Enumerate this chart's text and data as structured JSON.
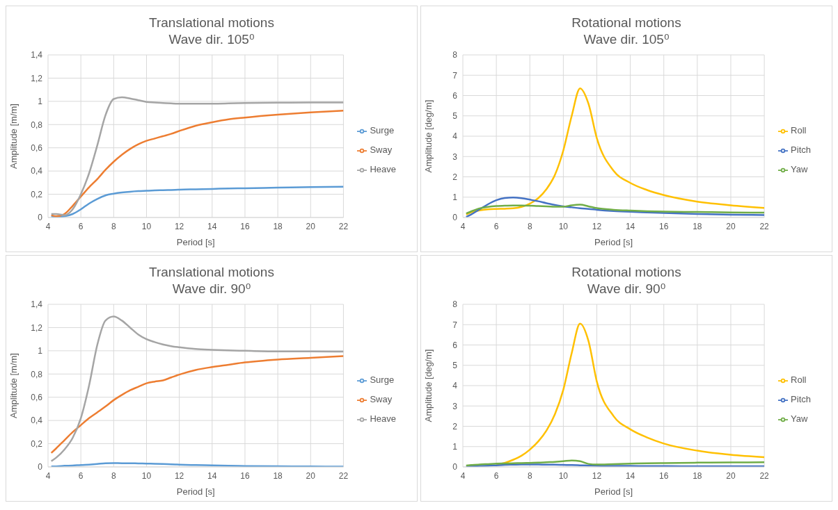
{
  "chart_data": [
    {
      "type": "line",
      "title": "Translational motions",
      "subtitle": "Wave dir. 105⁰",
      "xlabel": "Period [s]",
      "ylabel": "Amplitude [m/m]",
      "xlim": [
        4,
        22
      ],
      "xticks": [
        4,
        6,
        8,
        10,
        12,
        14,
        16,
        18,
        20,
        22
      ],
      "ylim": [
        0,
        1.4
      ],
      "yticks": [
        0,
        {
          "value": 0.2,
          "label": "0,2"
        },
        {
          "value": 0.4,
          "label": "0,4"
        },
        {
          "value": 0.6,
          "label": "0,6"
        },
        {
          "value": 0.8,
          "label": "0,8"
        },
        1,
        {
          "value": 1.2,
          "label": "1,2"
        },
        {
          "value": 1.4,
          "label": "1,4"
        }
      ],
      "grid": true,
      "legend": "right",
      "marker": "none",
      "line_style": "solid",
      "x": [
        4.2,
        4.5,
        5,
        5.5,
        6,
        6.5,
        7,
        7.5,
        8,
        8.5,
        9,
        9.5,
        10,
        10.5,
        11,
        11.5,
        12,
        13,
        14,
        15,
        16,
        18,
        20,
        22
      ],
      "series": [
        {
          "name": "Surge",
          "color": "#5b9bd5",
          "values": [
            0.01,
            0.005,
            0.01,
            0.03,
            0.07,
            0.12,
            0.16,
            0.19,
            0.205,
            0.215,
            0.222,
            0.227,
            0.23,
            0.233,
            0.235,
            0.237,
            0.24,
            0.243,
            0.246,
            0.25,
            0.252,
            0.257,
            0.262,
            0.265
          ]
        },
        {
          "name": "Sway",
          "color": "#ed7d31",
          "values": [
            0.02,
            0.01,
            0.03,
            0.1,
            0.18,
            0.26,
            0.33,
            0.41,
            0.48,
            0.54,
            0.59,
            0.63,
            0.66,
            0.68,
            0.7,
            0.72,
            0.745,
            0.79,
            0.82,
            0.845,
            0.86,
            0.885,
            0.905,
            0.92
          ]
        },
        {
          "name": "Heave",
          "color": "#a5a5a5",
          "values": [
            0.03,
            0.03,
            0.02,
            0.07,
            0.2,
            0.38,
            0.62,
            0.88,
            1.02,
            1.035,
            1.025,
            1.01,
            0.995,
            0.99,
            0.985,
            0.982,
            0.98,
            0.98,
            0.98,
            0.982,
            0.985,
            0.988,
            0.99,
            0.99
          ]
        }
      ]
    },
    {
      "type": "line",
      "title": "Rotational motions",
      "subtitle": "Wave dir. 105⁰",
      "xlabel": "Period [s]",
      "ylabel": "Amplitude  [deg/m]",
      "xlim": [
        4,
        22
      ],
      "xticks": [
        4,
        6,
        8,
        10,
        12,
        14,
        16,
        18,
        20,
        22
      ],
      "ylim": [
        0,
        8
      ],
      "yticks": [
        0,
        1,
        2,
        3,
        4,
        5,
        6,
        7,
        8
      ],
      "grid": true,
      "legend": "right",
      "marker": "none",
      "line_style": "solid",
      "x": [
        4.2,
        4.5,
        5,
        5.5,
        6,
        6.5,
        7,
        7.5,
        8,
        8.5,
        9,
        9.5,
        10,
        10.5,
        11,
        11.5,
        12,
        13,
        14,
        15,
        16,
        18,
        20,
        22
      ],
      "series": [
        {
          "name": "Roll",
          "color": "#ffc000",
          "values": [
            0.15,
            0.25,
            0.35,
            0.4,
            0.42,
            0.43,
            0.45,
            0.52,
            0.68,
            0.95,
            1.4,
            2.1,
            3.3,
            5.0,
            6.35,
            5.6,
            3.9,
            2.3,
            1.7,
            1.35,
            1.1,
            0.78,
            0.6,
            0.47
          ]
        },
        {
          "name": "Pitch",
          "color": "#4472c4",
          "values": [
            0.03,
            0.15,
            0.4,
            0.65,
            0.85,
            0.96,
            0.98,
            0.95,
            0.88,
            0.8,
            0.7,
            0.62,
            0.55,
            0.5,
            0.45,
            0.42,
            0.38,
            0.32,
            0.28,
            0.25,
            0.22,
            0.17,
            0.14,
            0.12
          ]
        },
        {
          "name": "Yaw",
          "color": "#70ad47",
          "values": [
            0.2,
            0.3,
            0.45,
            0.52,
            0.56,
            0.58,
            0.59,
            0.59,
            0.58,
            0.56,
            0.55,
            0.53,
            0.53,
            0.6,
            0.63,
            0.55,
            0.46,
            0.38,
            0.34,
            0.31,
            0.29,
            0.27,
            0.25,
            0.24
          ]
        }
      ]
    },
    {
      "type": "line",
      "title": "Translational motions",
      "subtitle": "Wave dir. 90⁰",
      "xlabel": "Period [s]",
      "ylabel": "Amplitude [m/m]",
      "xlim": [
        4,
        22
      ],
      "xticks": [
        4,
        6,
        8,
        10,
        12,
        14,
        16,
        18,
        20,
        22
      ],
      "ylim": [
        0,
        1.4
      ],
      "yticks": [
        0,
        {
          "value": 0.2,
          "label": "0,2"
        },
        {
          "value": 0.4,
          "label": "0,4"
        },
        {
          "value": 0.6,
          "label": "0,6"
        },
        {
          "value": 0.8,
          "label": "0,8"
        },
        1,
        {
          "value": 1.2,
          "label": "1,2"
        },
        {
          "value": 1.4,
          "label": "1,4"
        }
      ],
      "grid": true,
      "legend": "right",
      "marker": "none",
      "line_style": "solid",
      "x": [
        4.2,
        4.5,
        5,
        5.5,
        6,
        6.5,
        7,
        7.5,
        8,
        8.5,
        9,
        9.5,
        10,
        10.5,
        11,
        11.5,
        12,
        13,
        14,
        15,
        16,
        18,
        20,
        22
      ],
      "series": [
        {
          "name": "Surge",
          "color": "#5b9bd5",
          "values": [
            0.005,
            0.005,
            0.01,
            0.012,
            0.017,
            0.02,
            0.025,
            0.032,
            0.033,
            0.032,
            0.032,
            0.03,
            0.029,
            0.027,
            0.025,
            0.023,
            0.02,
            0.016,
            0.013,
            0.01,
            0.008,
            0.006,
            0.004,
            0.003
          ]
        },
        {
          "name": "Sway",
          "color": "#ed7d31",
          "values": [
            0.12,
            0.16,
            0.23,
            0.3,
            0.36,
            0.42,
            0.47,
            0.52,
            0.575,
            0.62,
            0.66,
            0.69,
            0.72,
            0.735,
            0.745,
            0.77,
            0.795,
            0.835,
            0.86,
            0.88,
            0.9,
            0.925,
            0.94,
            0.955
          ]
        },
        {
          "name": "Heave",
          "color": "#a5a5a5",
          "values": [
            0.05,
            0.08,
            0.15,
            0.25,
            0.42,
            0.7,
            1.05,
            1.26,
            1.295,
            1.26,
            1.2,
            1.14,
            1.1,
            1.075,
            1.055,
            1.04,
            1.03,
            1.015,
            1.008,
            1.003,
            1.0,
            0.995,
            0.995,
            0.993
          ]
        }
      ]
    },
    {
      "type": "line",
      "title": "Rotational motions",
      "subtitle": "Wave dir. 90⁰",
      "xlabel": "Period [s]",
      "ylabel": "Amplitude  [deg/m]",
      "xlim": [
        4,
        22
      ],
      "xticks": [
        4,
        6,
        8,
        10,
        12,
        14,
        16,
        18,
        20,
        22
      ],
      "ylim": [
        0,
        8
      ],
      "yticks": [
        0,
        1,
        2,
        3,
        4,
        5,
        6,
        7,
        8
      ],
      "grid": true,
      "legend": "right",
      "marker": "none",
      "line_style": "solid",
      "x": [
        4.2,
        4.5,
        5,
        5.5,
        6,
        6.5,
        7,
        7.5,
        8,
        8.5,
        9,
        9.5,
        10,
        10.5,
        11,
        11.5,
        12,
        13,
        14,
        15,
        16,
        18,
        20,
        22
      ],
      "series": [
        {
          "name": "Roll",
          "color": "#ffc000",
          "values": [
            null,
            null,
            null,
            null,
            0.12,
            0.2,
            0.35,
            0.55,
            0.85,
            1.25,
            1.8,
            2.6,
            3.8,
            5.6,
            7.05,
            6.2,
            4.2,
            2.5,
            1.85,
            1.45,
            1.15,
            0.8,
            0.6,
            0.48
          ]
        },
        {
          "name": "Pitch",
          "color": "#4472c4",
          "values": [
            0.03,
            0.04,
            0.05,
            0.06,
            0.08,
            0.1,
            0.11,
            0.12,
            0.12,
            0.12,
            0.11,
            0.11,
            0.1,
            0.09,
            0.08,
            0.07,
            0.06,
            0.05,
            0.05,
            0.04,
            0.04,
            0.03,
            0.03,
            0.03
          ]
        },
        {
          "name": "Yaw",
          "color": "#70ad47",
          "values": [
            0.07,
            0.09,
            0.12,
            0.14,
            0.16,
            0.17,
            0.18,
            0.19,
            0.2,
            0.21,
            0.23,
            0.25,
            0.28,
            0.32,
            0.28,
            0.15,
            0.12,
            0.14,
            0.16,
            0.18,
            0.19,
            0.21,
            0.22,
            0.23
          ]
        }
      ]
    }
  ]
}
